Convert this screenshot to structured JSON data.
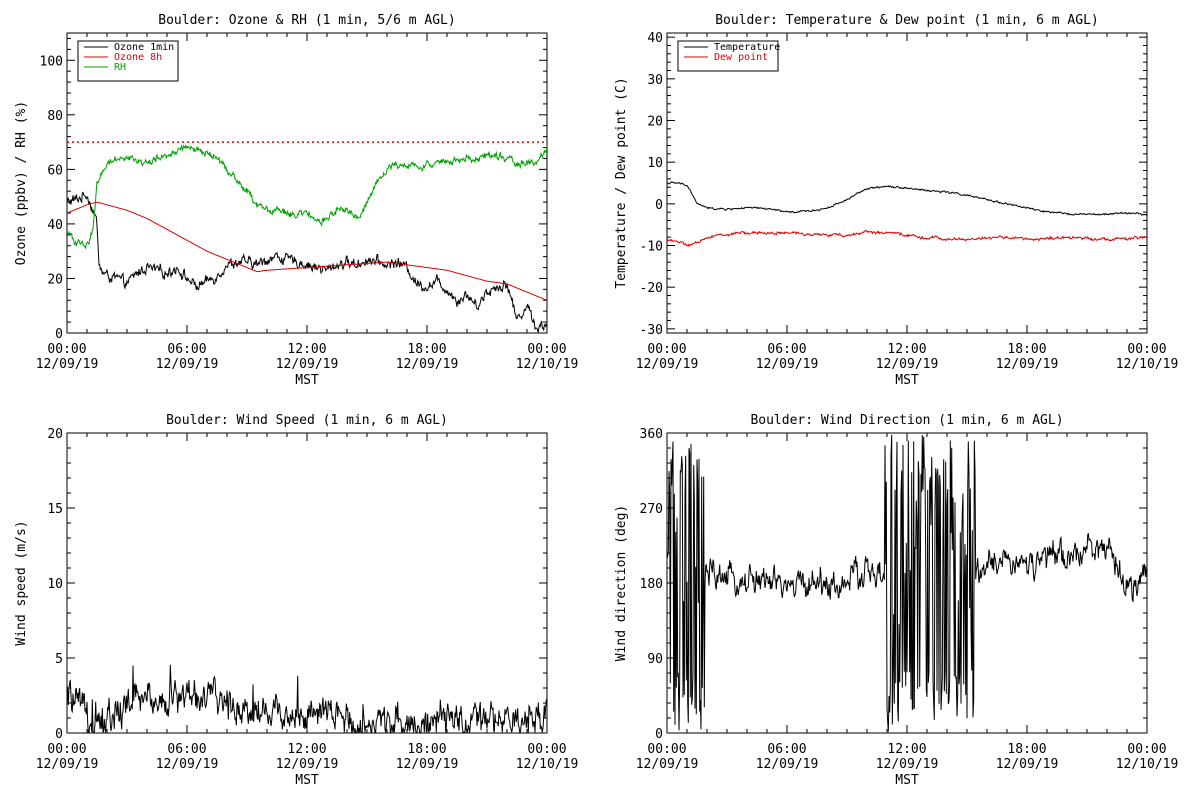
{
  "colors": {
    "ozone_1min": "#000000",
    "ozone_8h": "#e00000",
    "rh": "#00a000",
    "temperature": "#000000",
    "dew_point": "#e00000",
    "wind": "#000000",
    "threshold": "#e00000"
  },
  "chart_data": [
    {
      "id": "ozone",
      "type": "line",
      "title": "Boulder: Ozone & RH (1 min, 5/6 m AGL)",
      "xlabel": "MST",
      "ylabel": "Ozone (ppbv) / RH (%)",
      "xlim": [
        0,
        24
      ],
      "ylim": [
        0,
        110
      ],
      "x_ticks": [
        {
          "x": 0,
          "time": "00:00",
          "date": "12/09/19"
        },
        {
          "x": 6,
          "time": "06:00",
          "date": "12/09/19"
        },
        {
          "x": 12,
          "time": "12:00",
          "date": "12/09/19"
        },
        {
          "x": 18,
          "time": "18:00",
          "date": "12/09/19"
        },
        {
          "x": 24,
          "time": "00:00",
          "date": "12/10/19"
        }
      ],
      "y_ticks": [
        0,
        20,
        40,
        60,
        80,
        100
      ],
      "legend_position": "top-left",
      "reference_line": {
        "y": 70,
        "style": "dotted",
        "color": "#e00000"
      },
      "series": [
        {
          "name": "Ozone 1min",
          "color": "#000000",
          "noise": 1.8,
          "x": [
            0,
            0.5,
            1,
            1.3,
            1.5,
            1.6,
            1.8,
            2,
            2.5,
            3,
            3.5,
            4,
            4.5,
            5,
            5.5,
            6,
            6.5,
            7,
            7.5,
            8,
            8.5,
            9,
            9.5,
            10,
            10.5,
            11,
            11.5,
            12,
            12.5,
            13,
            13.5,
            14,
            14.5,
            15,
            15.5,
            16,
            16.5,
            17,
            17.5,
            18,
            18.5,
            19,
            19.5,
            20,
            20.5,
            21,
            21.5,
            22,
            22.5,
            23,
            23.5,
            24
          ],
          "y": [
            48,
            49,
            51,
            45,
            40,
            25,
            22,
            21,
            20,
            18,
            22,
            24,
            23,
            22,
            24,
            20,
            17,
            19,
            21,
            25,
            26,
            26,
            25,
            27,
            28,
            27,
            26,
            25,
            24,
            23,
            25,
            26,
            25,
            27,
            26,
            25,
            26,
            24,
            18,
            17,
            19,
            16,
            12,
            14,
            10,
            15,
            17,
            18,
            5,
            10,
            2,
            3
          ]
        },
        {
          "name": "Ozone 8h",
          "color": "#e00000",
          "noise": 0,
          "x": [
            0,
            1,
            1.5,
            2,
            3,
            4,
            5,
            6,
            7,
            8,
            9,
            9.5,
            10,
            11,
            12,
            13,
            14,
            15,
            16,
            17,
            18,
            19,
            20,
            21,
            22,
            23,
            24
          ],
          "y": [
            44,
            47,
            48,
            47,
            45,
            42,
            38,
            34,
            30,
            27,
            24,
            22.5,
            23,
            23.5,
            24,
            24.5,
            25,
            25.5,
            26,
            25,
            24,
            23,
            21,
            19,
            18,
            15,
            12
          ]
        },
        {
          "name": "RH",
          "color": "#00a000",
          "noise": 1.2,
          "x": [
            0,
            0.5,
            1,
            1.3,
            1.5,
            1.8,
            2,
            2.5,
            3,
            3.5,
            4,
            4.5,
            5,
            5.5,
            6,
            6.5,
            7,
            7.5,
            8,
            8.5,
            9,
            9.5,
            10,
            10.5,
            11,
            11.5,
            12,
            12.5,
            13,
            13.5,
            14,
            14.5,
            15,
            15.5,
            16,
            16.5,
            17,
            17.5,
            18,
            18.5,
            19,
            19.5,
            20,
            20.5,
            21,
            21.5,
            22,
            22.5,
            23,
            23.5,
            24
          ],
          "y": [
            37,
            33,
            32,
            38,
            55,
            60,
            62,
            64,
            65,
            63,
            62,
            64,
            65,
            67,
            68,
            67,
            66,
            64,
            60,
            56,
            52,
            47,
            45,
            45,
            44,
            43,
            44,
            40,
            42,
            45,
            45,
            42,
            48,
            55,
            60,
            62,
            62,
            61,
            62,
            62,
            63,
            63,
            64,
            64,
            65,
            65,
            64,
            62,
            63,
            62,
            68
          ]
        }
      ]
    },
    {
      "id": "temperature",
      "type": "line",
      "title": "Boulder: Temperature & Dew point (1 min, 6 m AGL)",
      "xlabel": "MST",
      "ylabel": "Temperature / Dew point (C)",
      "xlim": [
        0,
        24
      ],
      "ylim": [
        -31,
        41
      ],
      "x_ticks": [
        {
          "x": 0,
          "time": "00:00",
          "date": "12/09/19"
        },
        {
          "x": 6,
          "time": "06:00",
          "date": "12/09/19"
        },
        {
          "x": 12,
          "time": "12:00",
          "date": "12/09/19"
        },
        {
          "x": 18,
          "time": "18:00",
          "date": "12/09/19"
        },
        {
          "x": 24,
          "time": "00:00",
          "date": "12/10/19"
        }
      ],
      "y_ticks": [
        -30,
        -20,
        -10,
        0,
        10,
        20,
        30,
        40
      ],
      "legend_position": "top-left",
      "series": [
        {
          "name": "Temperature",
          "color": "#000000",
          "noise": 0.2,
          "x": [
            0,
            0.5,
            1,
            1.3,
            1.5,
            1.8,
            2,
            2.5,
            3,
            3.5,
            4,
            4.5,
            5,
            5.5,
            6,
            6.5,
            7,
            7.5,
            8,
            8.5,
            9,
            9.5,
            10,
            10.5,
            11,
            11.5,
            12,
            12.5,
            13,
            13.5,
            14,
            14.5,
            15,
            15.5,
            16,
            16.5,
            17,
            17.5,
            18,
            18.5,
            19,
            19.5,
            20,
            20.5,
            21,
            21.5,
            22,
            22.5,
            23,
            23.5,
            24
          ],
          "y": [
            5,
            5,
            4.5,
            2,
            0,
            -0.5,
            -1,
            -1.2,
            -1.3,
            -1.1,
            -1,
            -1,
            -1.2,
            -1.5,
            -2,
            -2,
            -1.7,
            -1.5,
            -1,
            0,
            1,
            2.5,
            3.5,
            4,
            4.3,
            4,
            3.8,
            3.5,
            3.2,
            3,
            2.8,
            2.5,
            2,
            1.5,
            1,
            0.5,
            0,
            -0.5,
            -1,
            -1.5,
            -2,
            -2.2,
            -2.3,
            -2.5,
            -2.5,
            -2.6,
            -2.5,
            -2.3,
            -2.2,
            -2.3,
            -2.8
          ]
        },
        {
          "name": "Dew point",
          "color": "#e00000",
          "noise": 0.3,
          "x": [
            0,
            0.5,
            1,
            1.5,
            2,
            2.5,
            3,
            3.5,
            4,
            5,
            6,
            7,
            8,
            9,
            9.5,
            10,
            10.5,
            11,
            11.5,
            12,
            12.5,
            13,
            13.5,
            14,
            15,
            16,
            17,
            18,
            19,
            20,
            21,
            22,
            23,
            24
          ],
          "y": [
            -8.5,
            -9,
            -10,
            -9.5,
            -8,
            -7.5,
            -7.5,
            -7,
            -7,
            -7,
            -7,
            -7.2,
            -7.5,
            -7.5,
            -7.2,
            -6.5,
            -7,
            -7,
            -7.2,
            -7.5,
            -7.8,
            -8.5,
            -8,
            -8.5,
            -8.5,
            -8.2,
            -8,
            -8.5,
            -8.3,
            -8.2,
            -8.2,
            -8.5,
            -8.4,
            -8
          ]
        }
      ]
    },
    {
      "id": "wind-speed",
      "type": "line",
      "title": "Boulder: Wind Speed (1 min, 6 m AGL)",
      "xlabel": "MST",
      "ylabel": "Wind speed (m/s)",
      "xlim": [
        0,
        24
      ],
      "ylim": [
        0,
        20
      ],
      "x_ticks": [
        {
          "x": 0,
          "time": "00:00",
          "date": "12/09/19"
        },
        {
          "x": 6,
          "time": "06:00",
          "date": "12/09/19"
        },
        {
          "x": 12,
          "time": "12:00",
          "date": "12/09/19"
        },
        {
          "x": 18,
          "time": "18:00",
          "date": "12/09/19"
        },
        {
          "x": 24,
          "time": "00:00",
          "date": "12/10/19"
        }
      ],
      "y_ticks": [
        0,
        5,
        10,
        15,
        20
      ],
      "series": [
        {
          "name": "",
          "color": "#000000",
          "noise": 1.0,
          "x": [
            0,
            0.5,
            1,
            1.5,
            2,
            2.5,
            3,
            3.5,
            4,
            4.5,
            5,
            5.5,
            6,
            6.5,
            7,
            7.5,
            8,
            8.5,
            9,
            9.5,
            10,
            10.5,
            11,
            11.5,
            12,
            12.5,
            13,
            13.5,
            14,
            14.5,
            15,
            15.5,
            16,
            16.5,
            17,
            17.5,
            18,
            18.5,
            19,
            19.5,
            20,
            20.5,
            21,
            21.5,
            22,
            22.5,
            23,
            23.5,
            24
          ],
          "y": [
            2.5,
            1.8,
            1.2,
            1.0,
            0.8,
            1.0,
            2.0,
            2.2,
            2.4,
            2.3,
            2.2,
            2.4,
            2.6,
            2.5,
            2.4,
            2.2,
            2.0,
            1.8,
            1.6,
            1.5,
            1.4,
            1.5,
            1.3,
            1.2,
            1.1,
            1.0,
            1.2,
            1.1,
            0.8,
            0.7,
            0.6,
            0.5,
            0.8,
            0.9,
            0.7,
            0.6,
            0.6,
            0.7,
            0.8,
            0.9,
            0.5,
            0.6,
            0.8,
            1.0,
            0.6,
            0.5,
            0.6,
            0.8,
            1.8
          ]
        }
      ]
    },
    {
      "id": "wind-direction",
      "type": "line",
      "title": "Boulder: Wind Direction (1 min, 6 m AGL)",
      "xlabel": "MST",
      "ylabel": "Wind direction (deg)",
      "xlim": [
        0,
        24
      ],
      "ylim": [
        0,
        360
      ],
      "x_ticks": [
        {
          "x": 0,
          "time": "00:00",
          "date": "12/09/19"
        },
        {
          "x": 6,
          "time": "06:00",
          "date": "12/09/19"
        },
        {
          "x": 12,
          "time": "12:00",
          "date": "12/09/19"
        },
        {
          "x": 18,
          "time": "18:00",
          "date": "12/09/19"
        },
        {
          "x": 24,
          "time": "00:00",
          "date": "12/10/19"
        }
      ],
      "y_ticks": [
        0,
        90,
        180,
        270,
        360
      ],
      "series": [
        {
          "name": "",
          "color": "#000000",
          "noise": 16,
          "erratic_ranges": [
            [
              0.1,
              1.9
            ],
            [
              10.9,
              15.4
            ]
          ],
          "x": [
            0,
            0.5,
            1,
            1.5,
            2,
            2.5,
            3,
            3.5,
            4,
            4.5,
            5,
            5.5,
            6,
            6.5,
            7,
            7.5,
            8,
            8.5,
            9,
            9.5,
            10,
            10.5,
            11,
            11.5,
            12,
            12.5,
            13,
            13.5,
            14,
            14.5,
            15,
            15.5,
            16,
            16.5,
            17,
            17.5,
            18,
            18.5,
            19,
            19.5,
            20,
            20.5,
            21,
            21.5,
            22,
            22.5,
            23,
            23.5,
            24
          ],
          "y": [
            200,
            180,
            160,
            170,
            190,
            190,
            185,
            180,
            182,
            185,
            180,
            178,
            175,
            178,
            180,
            182,
            178,
            175,
            180,
            190,
            195,
            190,
            180,
            180,
            175,
            170,
            180,
            185,
            180,
            175,
            180,
            190,
            200,
            205,
            210,
            205,
            200,
            205,
            210,
            215,
            205,
            215,
            230,
            225,
            215,
            195,
            180,
            175,
            190
          ]
        }
      ]
    }
  ]
}
